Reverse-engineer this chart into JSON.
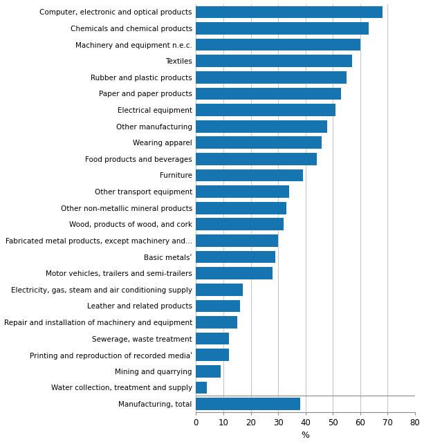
{
  "categories": [
    "Computer, electronic and optical products",
    "Chemicals and chemical products",
    "Machinery and equipment n.e.c.",
    "Textiles",
    "Rubber and plastic products",
    "Paper and paper products",
    "Electrical equipment",
    "Other manufacturing",
    "Wearing apparel",
    "Food products and beverages",
    "Furniture",
    "Other transport equipment",
    "Other non-metallic mineral products",
    "Wood, products of wood, and cork",
    "Fabricated metal products, except machinery and...",
    "Basic metalsʹ",
    "Motor vehicles, trailers and semi-trailers",
    "Electricity, gas, steam and air conditioning supply",
    "Leather and related products",
    "Repair and installation of machinery and equipment",
    "Sewerage, waste treatment",
    "Printing and reproduction of recorded mediaʹ",
    "Mining and quarrying",
    "Water collection, treatment and supply",
    "Manufacturing, total"
  ],
  "values": [
    68,
    63,
    60,
    57,
    55,
    53,
    51,
    48,
    46,
    44,
    39,
    34,
    33,
    32,
    30,
    29,
    28,
    17,
    16,
    15,
    12,
    12,
    9,
    4,
    38
  ],
  "bar_color": "#1674b1",
  "xlabel": "%",
  "xlim": [
    0,
    80
  ],
  "xticks": [
    0,
    10,
    20,
    30,
    40,
    50,
    60,
    70,
    80
  ],
  "bar_height": 0.75,
  "background_color": "#ffffff",
  "grid_color": "#c8c8c8",
  "label_fontsize": 7.5,
  "xlabel_fontsize": 9,
  "tick_fontsize": 8.5
}
